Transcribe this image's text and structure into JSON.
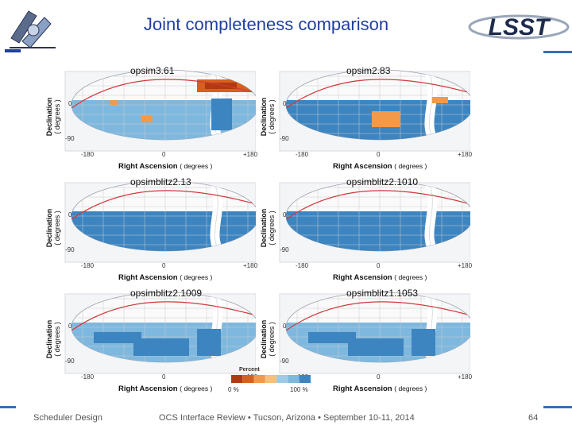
{
  "slide": {
    "title": "Joint completeness comparison",
    "footer_left": "Scheduler Design",
    "footer_center": "OCS Interface Review • Tucson, Arizona • September 10-11, 2014",
    "page_number": "64",
    "logo_left_icon": "telescope-logo-icon",
    "logo_right_icon": "lsst-logo-icon",
    "logo_right_text": "LSST"
  },
  "axes": {
    "ylabel": "Declination",
    "ylabel_units": "( degrees )",
    "xlabel": "Right Ascension",
    "xlabel_units": "( degrees )",
    "y_top": "0",
    "y_bottom": "-90",
    "x_left": "-180",
    "x_mid": "0",
    "x_right": "+180"
  },
  "panels": [
    {
      "name": "opsim3.61",
      "fill": "#7fb8de",
      "patches": "orange"
    },
    {
      "name": "opsim2.83",
      "fill": "#3d85c0",
      "patches": "orange-south"
    },
    {
      "name": "opsimblitz2.13",
      "fill": "#3d85c0",
      "patches": "none"
    },
    {
      "name": "opsimblitz2.1010",
      "fill": "#3d85c0",
      "patches": "none"
    },
    {
      "name": "opsimblitz2.1009",
      "fill": "#7fb8de",
      "patches": "blue"
    },
    {
      "name": "opsimblitz1.1053",
      "fill": "#7fb8de",
      "patches": "blue"
    }
  ],
  "colorbar": {
    "title": "Percent",
    "min_label": "0 %",
    "max_label": "100 %",
    "colors": [
      "#b23a10",
      "#d8601e",
      "#f29a4a",
      "#f7c07a",
      "#9fcae6",
      "#7fb8de",
      "#3d85c0"
    ]
  }
}
